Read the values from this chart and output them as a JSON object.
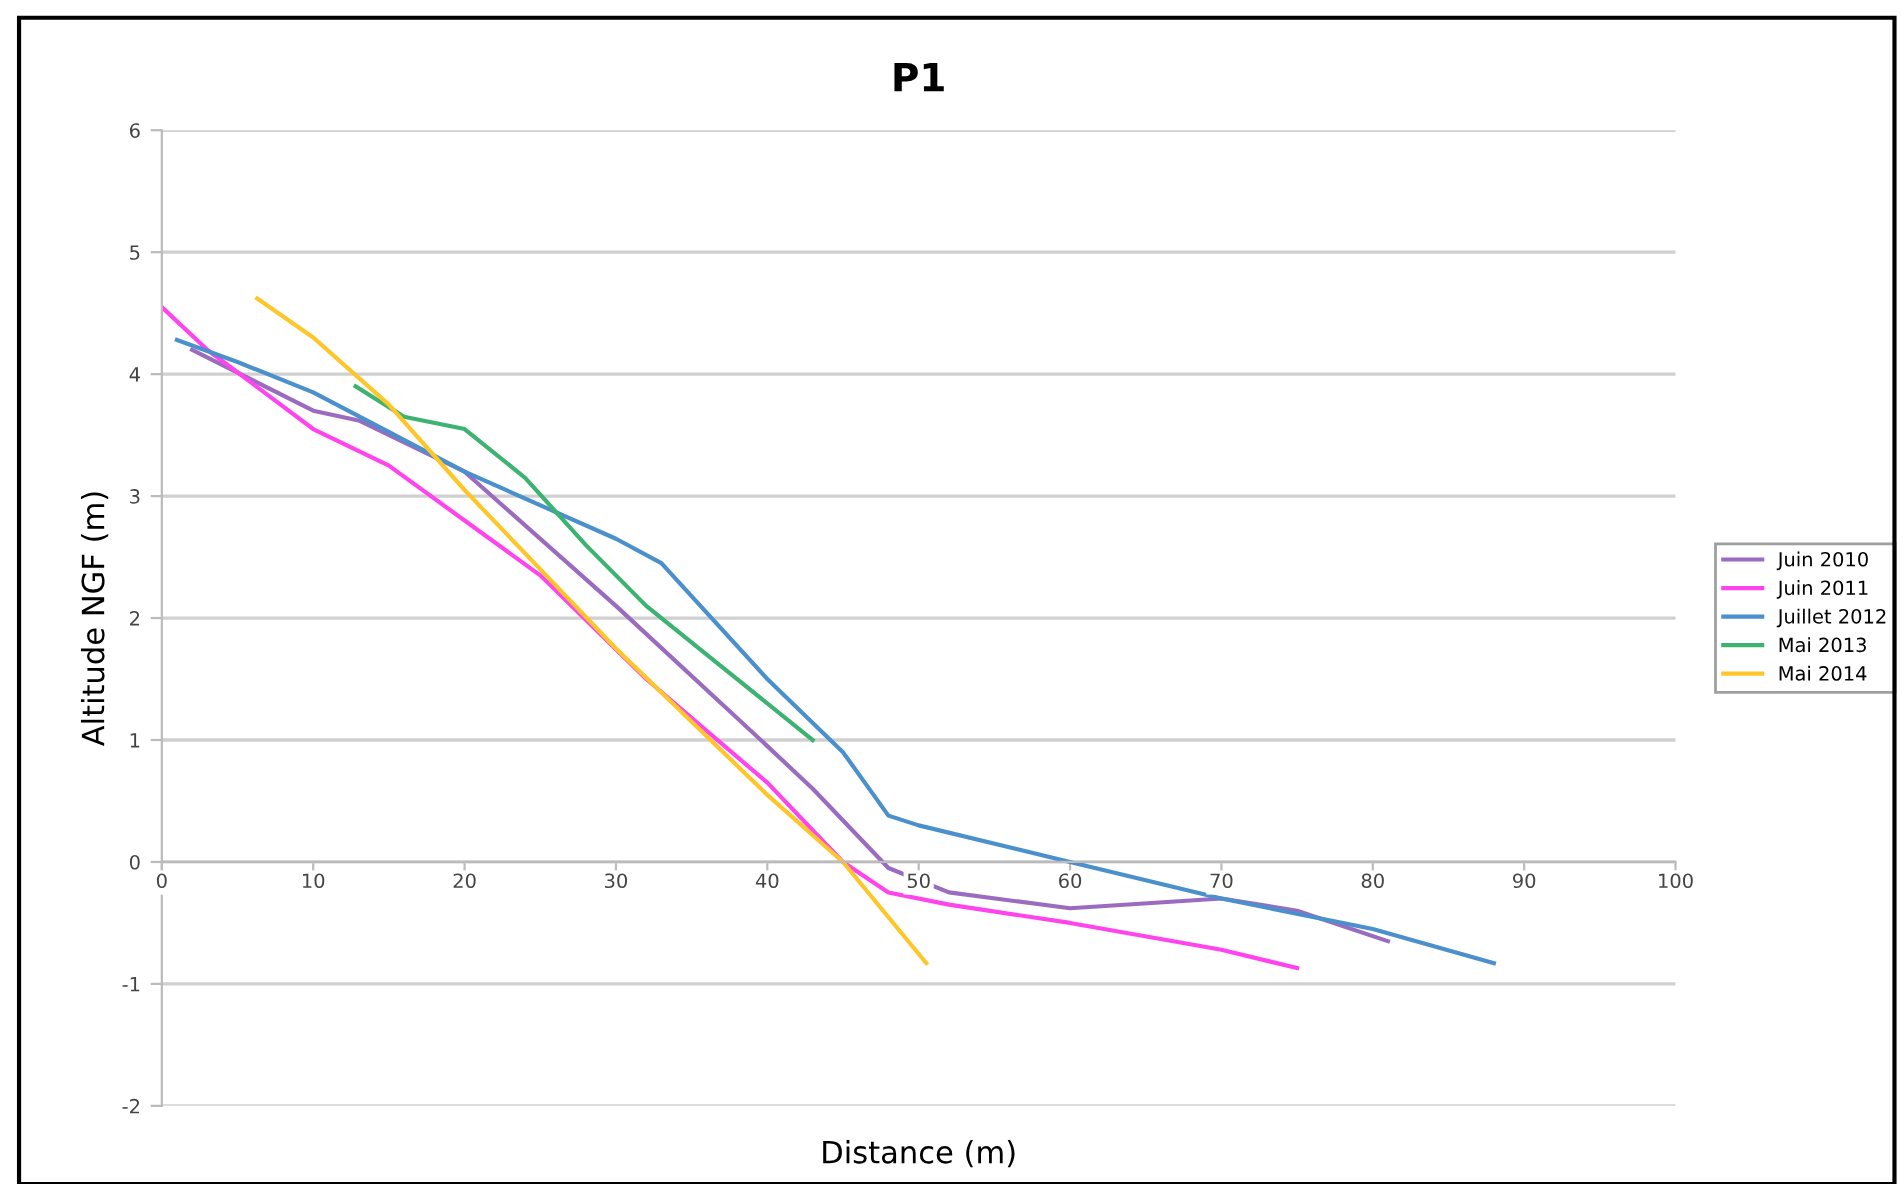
{
  "chart_data": {
    "type": "line",
    "title": "P1",
    "xlabel": "Distance (m)",
    "ylabel": "Altitude NGF (m)",
    "xlim": [
      0,
      100
    ],
    "xticks": [
      0,
      10,
      20,
      30,
      40,
      50,
      60,
      70,
      80,
      90,
      100
    ],
    "ylim": [
      -2,
      6
    ],
    "yticks": [
      -2,
      -1,
      0,
      1,
      2,
      3,
      4,
      5,
      6
    ],
    "grid": "y",
    "legend": "right",
    "marker": "none",
    "line_style": "solid",
    "series": [
      {
        "name": "Juin 2010",
        "color": "#9b6bc0",
        "x": [
          2,
          10,
          13,
          20,
          30,
          40,
          43,
          48,
          52,
          60,
          70,
          75,
          81
        ],
        "values": [
          4.2,
          3.7,
          3.62,
          3.2,
          2.1,
          0.95,
          0.6,
          -0.05,
          -0.25,
          -0.38,
          -0.3,
          -0.4,
          -0.65
        ]
      },
      {
        "name": "Juin 2011",
        "color": "#ff44ee",
        "x": [
          0,
          3,
          10,
          15,
          20,
          25,
          32,
          40,
          45,
          48,
          52,
          60,
          70,
          75
        ],
        "values": [
          4.55,
          4.2,
          3.55,
          3.25,
          2.8,
          2.35,
          1.5,
          0.65,
          0,
          -0.25,
          -0.35,
          -0.5,
          -0.72,
          -0.87
        ]
      },
      {
        "name": "Juillet 2012",
        "color": "#4a90cc",
        "x": [
          1,
          5,
          10,
          20,
          30,
          33,
          40,
          45,
          48,
          50,
          60,
          70,
          80,
          88
        ],
        "values": [
          4.28,
          4.1,
          3.85,
          3.2,
          2.65,
          2.45,
          1.5,
          0.9,
          0.38,
          0.3,
          0.0,
          -0.3,
          -0.55,
          -0.83
        ]
      },
      {
        "name": "Mai 2013",
        "color": "#3cb371",
        "x": [
          12.8,
          16,
          20,
          24,
          28,
          32,
          37,
          43
        ],
        "values": [
          3.9,
          3.65,
          3.55,
          3.15,
          2.6,
          2.1,
          1.6,
          1.0
        ]
      },
      {
        "name": "Mai 2014",
        "color": "#ffc629",
        "x": [
          6.3,
          10,
          15,
          20,
          30,
          40,
          45,
          50.5
        ],
        "values": [
          4.62,
          4.3,
          3.75,
          3.05,
          1.75,
          0.55,
          0,
          -0.83
        ]
      }
    ]
  }
}
